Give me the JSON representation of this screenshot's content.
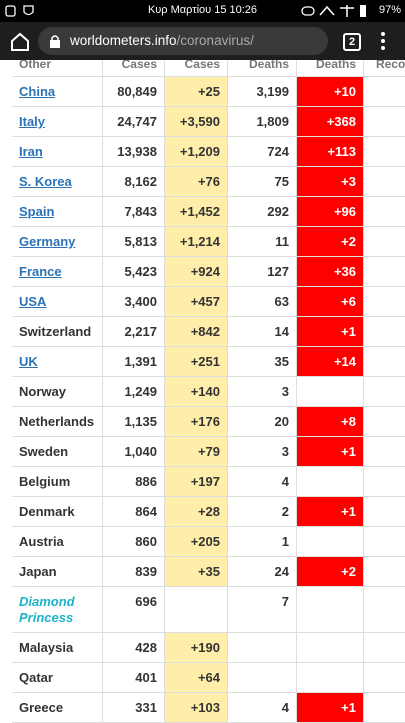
{
  "status_bar": {
    "time": "Κυρ Μαρτίου 15 10:26",
    "battery": "97%"
  },
  "browser": {
    "url_host": "worldometers.info",
    "url_path": "/coronavirus/",
    "tab_count": "2"
  },
  "table": {
    "header": [
      "Other",
      "Cases",
      "Cases",
      "Deaths",
      "Deaths",
      "Recov"
    ],
    "rows": [
      {
        "cells": [
          "China",
          "80,849",
          "+25",
          "3,199",
          "+10",
          null
        ],
        "link": true
      },
      {
        "cells": [
          "Italy",
          "24,747",
          "+3,590",
          "1,809",
          "+368",
          null
        ],
        "link": true
      },
      {
        "cells": [
          "Iran",
          "13,938",
          "+1,209",
          "724",
          "+113",
          null
        ],
        "link": true
      },
      {
        "cells": [
          "S. Korea",
          "8,162",
          "+76",
          "75",
          "+3",
          null
        ],
        "link": true
      },
      {
        "cells": [
          "Spain",
          "7,843",
          "+1,452",
          "292",
          "+96",
          null
        ],
        "link": true
      },
      {
        "cells": [
          "Germany",
          "5,813",
          "+1,214",
          "11",
          "+2",
          null
        ],
        "link": true
      },
      {
        "cells": [
          "France",
          "5,423",
          "+924",
          "127",
          "+36",
          null
        ],
        "link": true
      },
      {
        "cells": [
          "USA",
          "3,400",
          "+457",
          "63",
          "+6",
          null
        ],
        "link": true
      },
      {
        "cells": [
          "Switzerland",
          "2,217",
          "+842",
          "14",
          "+1",
          null
        ],
        "link": false
      },
      {
        "cells": [
          "UK",
          "1,391",
          "+251",
          "35",
          "+14",
          null
        ],
        "link": true
      },
      {
        "cells": [
          "Norway",
          "1,249",
          "+140",
          "3",
          null,
          null
        ],
        "link": false
      },
      {
        "cells": [
          "Netherlands",
          "1,135",
          "+176",
          "20",
          "+8",
          null
        ],
        "link": false
      },
      {
        "cells": [
          "Sweden",
          "1,040",
          "+79",
          "3",
          "+1",
          null
        ],
        "link": false
      },
      {
        "cells": [
          "Belgium",
          "886",
          "+197",
          "4",
          null,
          null
        ],
        "link": false
      },
      {
        "cells": [
          "Denmark",
          "864",
          "+28",
          "2",
          "+1",
          null
        ],
        "link": false
      },
      {
        "cells": [
          "Austria",
          "860",
          "+205",
          "1",
          null,
          null
        ],
        "link": false
      },
      {
        "cells": [
          "Japan",
          "839",
          "+35",
          "24",
          "+2",
          null
        ],
        "link": false
      },
      {
        "cells": [
          "Diamond Princess",
          "696",
          null,
          "7",
          null,
          null
        ],
        "link": false,
        "italic": true
      },
      {
        "cells": [
          "Malaysia",
          "428",
          "+190",
          null,
          null,
          null
        ],
        "link": false
      },
      {
        "cells": [
          "Qatar",
          "401",
          "+64",
          null,
          null,
          null
        ],
        "link": false
      },
      {
        "cells": [
          "Greece",
          "331",
          "+103",
          "4",
          "+1",
          null
        ],
        "link": false
      }
    ]
  }
}
